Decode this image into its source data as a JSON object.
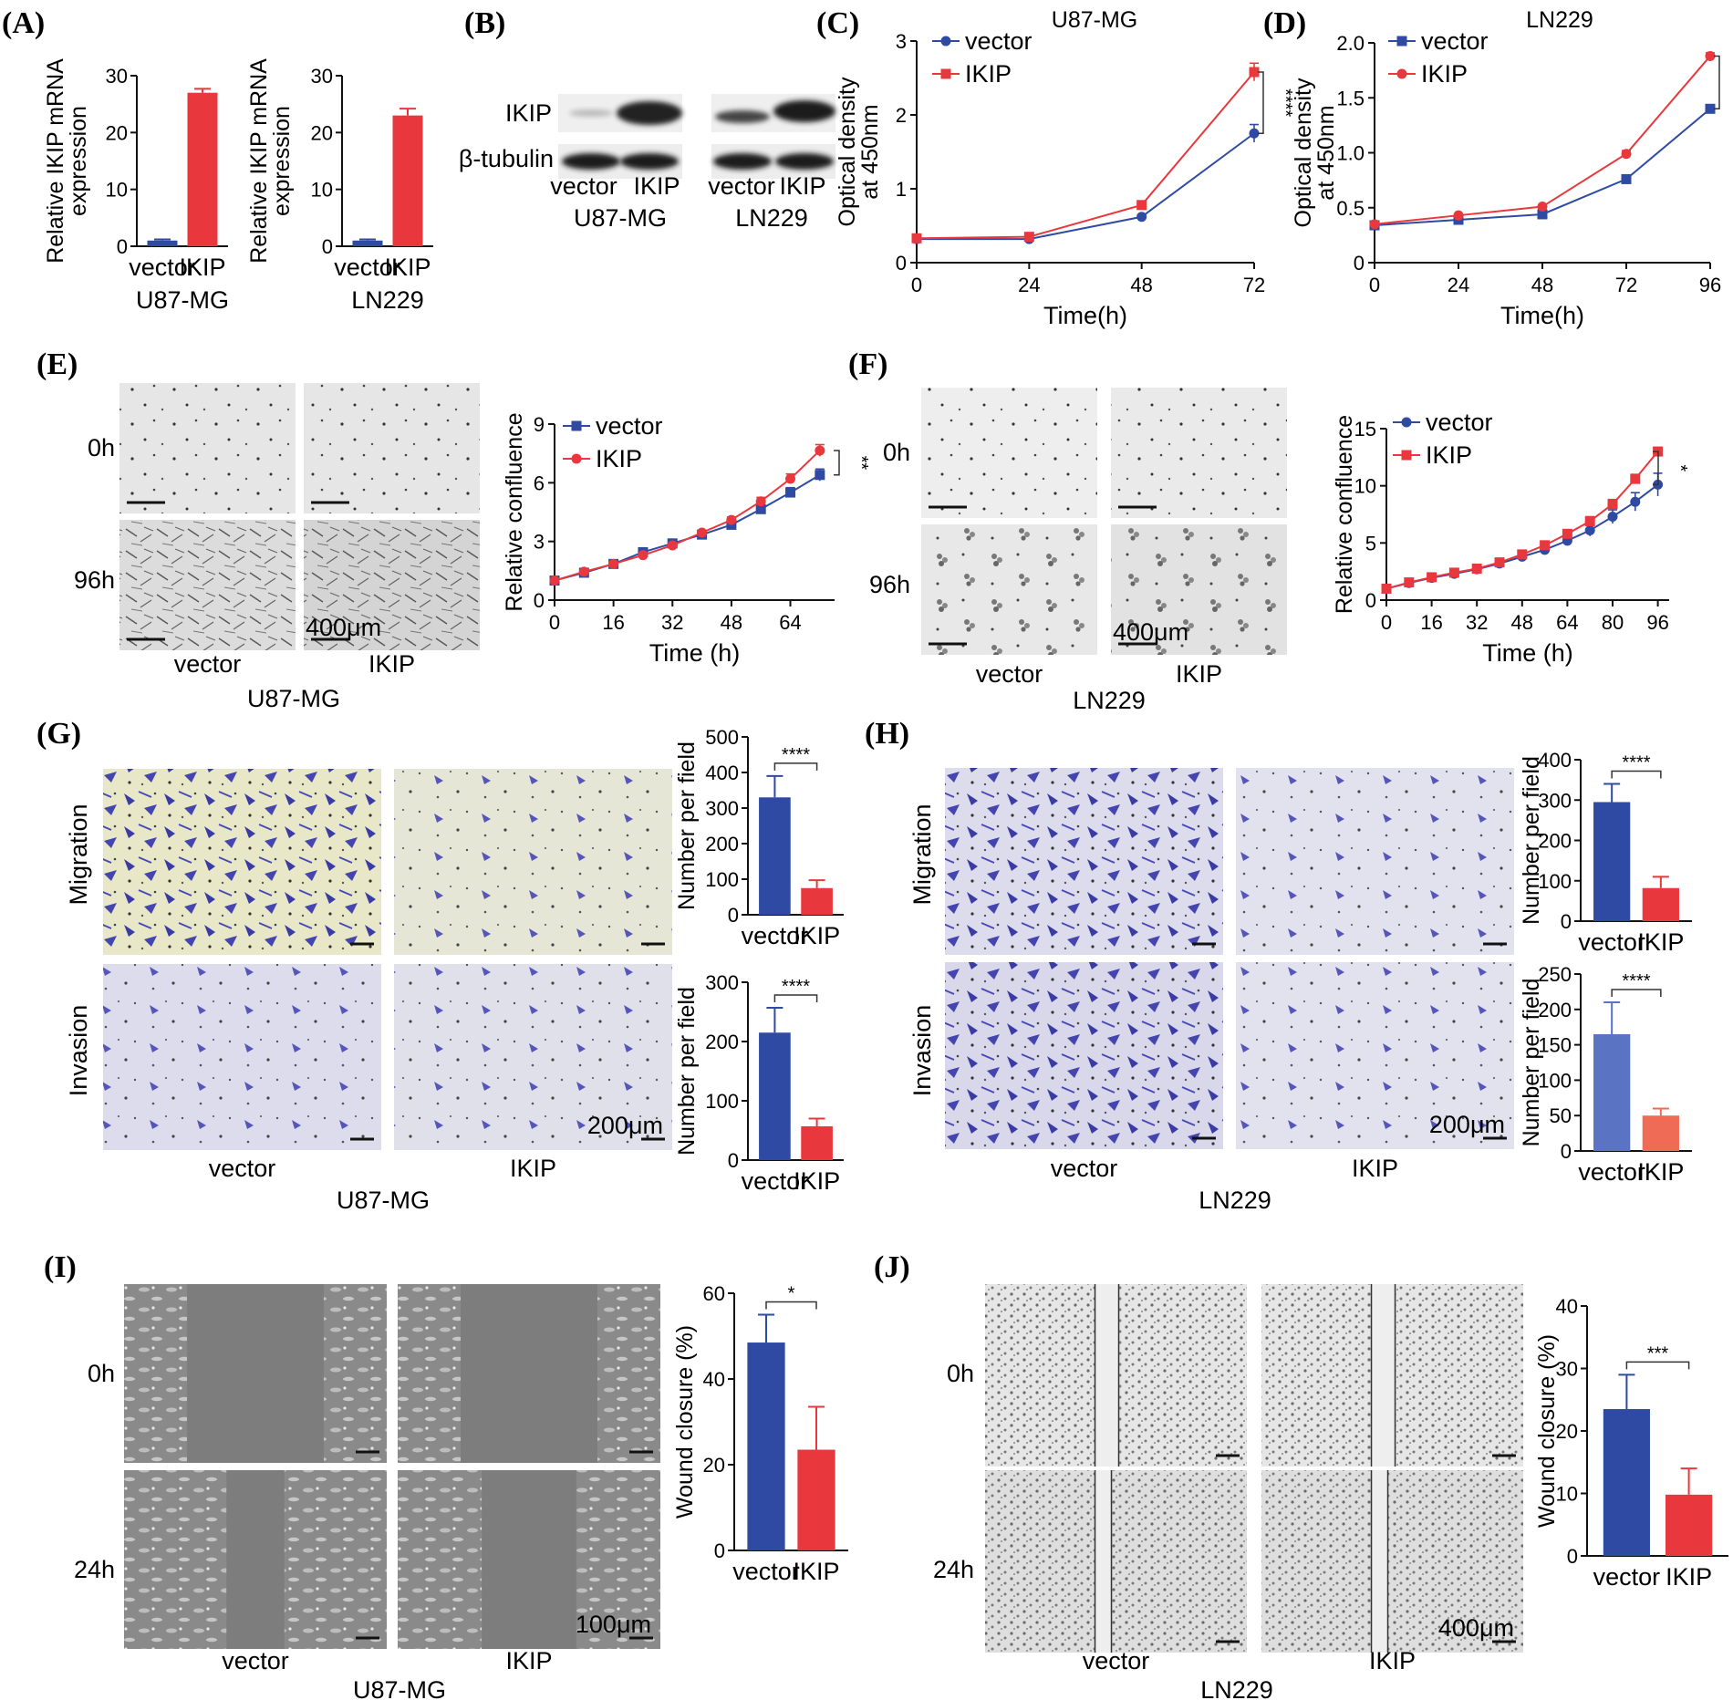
{
  "colors": {
    "vector_blue": "#2f4aa3",
    "ikip_red": "#e8383d",
    "h_invasion_blue": "#5a73c2",
    "h_invasion_red": "#ef6b55",
    "micro_bg": "#e4e4e4",
    "stain_bg": "#e6e6f0",
    "stain_cell": "#3a3aa0",
    "wound_bg": "#7d7d7d"
  },
  "panels": {
    "A": "(A)",
    "B": "(B)",
    "C": "(C)",
    "D": "(D)",
    "E": "(E)",
    "F": "(F)",
    "G": "(G)",
    "H": "(H)",
    "I": "(I)",
    "J": "(J)"
  },
  "blot": {
    "row1": "IKIP",
    "row2": "β-tubulin",
    "lanes": [
      "vector",
      "IKIP",
      "vector",
      "IKIP"
    ],
    "group1": "U87-MG",
    "group2": "LN229"
  },
  "micro": {
    "E": {
      "rows": [
        "0h",
        "96h"
      ],
      "cols": [
        "vector",
        "IKIP"
      ],
      "scale": "400μm",
      "cell": "U87-MG"
    },
    "F": {
      "rows": [
        "0h",
        "96h"
      ],
      "cols": [
        "vector",
        "IKIP"
      ],
      "scale": "400μm",
      "cell": "LN229"
    },
    "G": {
      "rows": [
        "Migration",
        "Invasion"
      ],
      "cols": [
        "vector",
        "IKIP"
      ],
      "scale": "200μm",
      "cell": "U87-MG"
    },
    "H": {
      "rows": [
        "Migration",
        "Invasion"
      ],
      "cols": [
        "vector",
        "IKIP"
      ],
      "scale": "200μm",
      "cell": "LN229"
    },
    "I": {
      "rows": [
        "0h",
        "24h"
      ],
      "cols": [
        "vector",
        "IKIP"
      ],
      "scale": "100μm",
      "cell": "U87-MG"
    },
    "J": {
      "rows": [
        "0h",
        "24h"
      ],
      "cols": [
        "vector",
        "IKIP"
      ],
      "scale": "400μm",
      "cell": "LN229"
    }
  },
  "chart_data": [
    {
      "id": "A1",
      "type": "bar",
      "ylabel": "Relative IKIP mRNA\nexpression",
      "categories": [
        "vector",
        "IKIP"
      ],
      "values": [
        1,
        27
      ],
      "errors": [
        0.2,
        0.7
      ],
      "ylim": [
        0,
        30
      ],
      "yticks": [
        0,
        10,
        20,
        30
      ],
      "caption": "U87-MG"
    },
    {
      "id": "A2",
      "type": "bar",
      "ylabel": "Relative IKIP mRNA\nexpression",
      "categories": [
        "vector",
        "IKIP"
      ],
      "values": [
        1,
        23
      ],
      "errors": [
        0.2,
        1.2
      ],
      "ylim": [
        0,
        30
      ],
      "yticks": [
        0,
        10,
        20,
        30
      ],
      "caption": "LN229"
    },
    {
      "id": "C",
      "type": "line",
      "title": "U87-MG",
      "xlabel": "Time(h)",
      "ylabel": "Optical density\nat 450nm",
      "x": [
        0,
        24,
        48,
        72
      ],
      "xlim": [
        0,
        72
      ],
      "xticks": [
        0,
        24,
        48,
        72
      ],
      "ylim": [
        0,
        3
      ],
      "yticks": [
        0,
        1,
        2,
        3
      ],
      "legend_position": "top-left",
      "significance": "****",
      "series": [
        {
          "name": "vector",
          "marker": "circle",
          "values": [
            0.32,
            0.32,
            0.62,
            1.75
          ],
          "errors": [
            0.02,
            0.02,
            0.03,
            0.12
          ]
        },
        {
          "name": "IKIP",
          "marker": "square",
          "values": [
            0.33,
            0.35,
            0.78,
            2.58
          ],
          "errors": [
            0.02,
            0.02,
            0.03,
            0.12
          ]
        }
      ]
    },
    {
      "id": "D",
      "type": "line",
      "title": "LN229",
      "xlabel": "Time(h)",
      "ylabel": "Optical density\nat 450nm",
      "x": [
        0,
        24,
        48,
        72,
        96
      ],
      "xlim": [
        0,
        96
      ],
      "xticks": [
        0,
        24,
        48,
        72,
        96
      ],
      "ylim": [
        0,
        2
      ],
      "yticks": [
        "0",
        "0.5",
        "1.0",
        "1.5",
        "2.0"
      ],
      "legend_position": "top-left",
      "significance": "****",
      "series": [
        {
          "name": "vector",
          "marker": "square",
          "values": [
            0.34,
            0.39,
            0.44,
            0.76,
            1.4
          ],
          "errors": [
            0.01,
            0.01,
            0.01,
            0.02,
            0.03
          ]
        },
        {
          "name": "IKIP",
          "marker": "circle",
          "values": [
            0.35,
            0.43,
            0.51,
            0.99,
            1.88
          ],
          "errors": [
            0.01,
            0.01,
            0.01,
            0.03,
            0.03
          ]
        }
      ]
    },
    {
      "id": "E",
      "type": "line",
      "xlabel": "Time (h)",
      "ylabel": "Relative confluence",
      "x": [
        0,
        8,
        16,
        24,
        32,
        40,
        48,
        56,
        64,
        72
      ],
      "xlim": [
        0,
        76
      ],
      "xticks": [
        0,
        16,
        32,
        48,
        64
      ],
      "ylim": [
        0,
        9
      ],
      "yticks": [
        0,
        3,
        6,
        9
      ],
      "legend_position": "top-left",
      "significance": "**",
      "series": [
        {
          "name": "vector",
          "marker": "square",
          "values": [
            1,
            1.4,
            1.85,
            2.45,
            2.9,
            3.35,
            3.85,
            4.65,
            5.5,
            6.4
          ],
          "errors": [
            0.05,
            0.05,
            0.05,
            0.1,
            0.1,
            0.1,
            0.15,
            0.2,
            0.25,
            0.3
          ]
        },
        {
          "name": "IKIP",
          "marker": "circle",
          "values": [
            1,
            1.45,
            1.85,
            2.3,
            2.8,
            3.45,
            4.1,
            5.05,
            6.2,
            7.65
          ],
          "errors": [
            0.05,
            0.05,
            0.05,
            0.1,
            0.1,
            0.1,
            0.15,
            0.2,
            0.25,
            0.3
          ]
        }
      ]
    },
    {
      "id": "F",
      "type": "line",
      "xlabel": "Time (h)",
      "ylabel": "Relative confluence",
      "x": [
        0,
        8,
        16,
        24,
        32,
        40,
        48,
        56,
        64,
        72,
        80,
        88,
        96
      ],
      "xlim": [
        0,
        100
      ],
      "xticks": [
        0,
        16,
        32,
        48,
        64,
        80,
        96
      ],
      "ylim": [
        0,
        15
      ],
      "yticks": [
        0,
        5,
        10,
        15
      ],
      "legend_position": "top-left",
      "significance": "*",
      "series": [
        {
          "name": "vector",
          "marker": "circle",
          "values": [
            1,
            1.5,
            1.95,
            2.3,
            2.7,
            3.2,
            3.8,
            4.4,
            5.2,
            6.1,
            7.3,
            8.6,
            10.1
          ],
          "errors": [
            0.05,
            0.1,
            0.1,
            0.1,
            0.15,
            0.2,
            0.2,
            0.3,
            0.35,
            0.5,
            0.6,
            0.8,
            1.0
          ]
        },
        {
          "name": "IKIP",
          "marker": "square",
          "values": [
            1,
            1.55,
            2.0,
            2.4,
            2.75,
            3.3,
            4.0,
            4.8,
            5.8,
            6.9,
            8.4,
            10.6,
            13.0
          ],
          "errors": [
            0.05,
            0.1,
            0.1,
            0.1,
            0.15,
            0.2,
            0.2,
            0.3,
            0.35,
            0.4,
            0.4,
            0.4,
            0.3
          ]
        }
      ]
    },
    {
      "id": "G1",
      "type": "bar",
      "ylabel": "Number per field",
      "categories": [
        "vector",
        "IKIP"
      ],
      "values": [
        330,
        75
      ],
      "errors": [
        60,
        22
      ],
      "ylim": [
        0,
        500
      ],
      "yticks": [
        0,
        100,
        200,
        300,
        400,
        500
      ],
      "significance": "****"
    },
    {
      "id": "G2",
      "type": "bar",
      "ylabel": "Number per field",
      "categories": [
        "vector",
        "IKIP"
      ],
      "values": [
        215,
        57
      ],
      "errors": [
        42,
        13
      ],
      "ylim": [
        0,
        300
      ],
      "yticks": [
        0,
        100,
        200,
        300
      ],
      "significance": "****"
    },
    {
      "id": "H1",
      "type": "bar",
      "ylabel": "Number per field",
      "categories": [
        "vector",
        "IKIP"
      ],
      "values": [
        295,
        82
      ],
      "errors": [
        45,
        28
      ],
      "ylim": [
        0,
        400
      ],
      "yticks": [
        0,
        100,
        200,
        300,
        400
      ],
      "significance": "****"
    },
    {
      "id": "H2",
      "type": "bar",
      "ylabel": "Number per field",
      "categories": [
        "vector",
        "IKIP"
      ],
      "values": [
        165,
        50
      ],
      "errors": [
        45,
        10
      ],
      "ylim": [
        0,
        250
      ],
      "yticks": [
        0,
        50,
        100,
        150,
        200,
        250
      ],
      "significance": "****"
    },
    {
      "id": "I",
      "type": "bar",
      "ylabel": "Wound closure (%)",
      "categories": [
        "vector",
        "IKIP"
      ],
      "values": [
        48.5,
        23.5
      ],
      "errors": [
        6.5,
        10
      ],
      "ylim": [
        0,
        60
      ],
      "yticks": [
        0,
        20,
        40,
        60
      ],
      "significance": "*"
    },
    {
      "id": "J",
      "type": "bar",
      "ylabel": "Wound closure (%)",
      "categories": [
        "vector",
        "IKIP"
      ],
      "values": [
        23.5,
        9.8
      ],
      "errors": [
        5.5,
        4.2
      ],
      "ylim": [
        0,
        40
      ],
      "yticks": [
        0,
        10,
        20,
        30,
        40
      ],
      "significance": "***"
    }
  ]
}
